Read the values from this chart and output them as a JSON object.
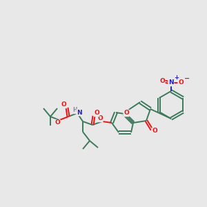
{
  "bg_color": "#e8e8e8",
  "bond_color": "#3a7a5a",
  "bond_width": 1.4,
  "atom_colors": {
    "O": "#ee1111",
    "N": "#2222cc",
    "H": "#888899",
    "C": "#3a7a5a"
  },
  "figsize": [
    3.0,
    3.0
  ],
  "dpi": 100
}
